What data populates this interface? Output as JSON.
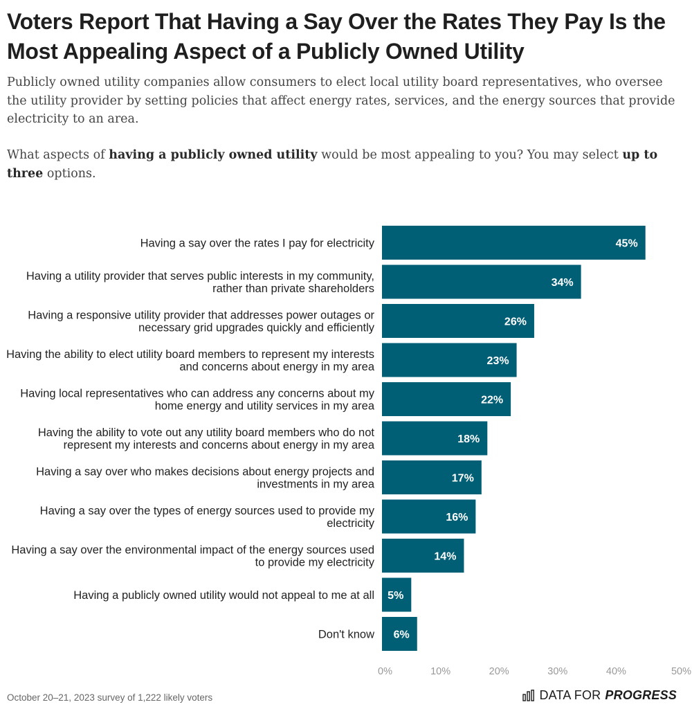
{
  "title": "Voters Report That Having a Say Over the Rates They Pay Is the Most Appealing Aspect of a Publicly Owned Utility",
  "intro": "Publicly owned utility companies allow consumers to elect local utility board representatives, who oversee the utility provider by setting policies that affect energy rates, services, and the energy sources that provide electricity to an area.",
  "question": {
    "part1": "What aspects of ",
    "bold1": "having a publicly owned utility",
    "part2": " would be most appealing to you? You may select ",
    "bold2": "up to three",
    "part3": " options."
  },
  "footnote": "October 20–21, 2023 survey of 1,222 likely voters",
  "brand": {
    "light": "DATA FOR",
    "strong": "PROGRESS",
    "icon": "bar-chart-icon"
  },
  "colors": {
    "bar": "#005E75",
    "value_text": "#FFFFFF"
  },
  "chart_data": {
    "type": "bar",
    "orientation": "horizontal",
    "categories": [
      "Having a say over the rates I pay for electricity",
      "Having a utility provider that serves public interests in my community, rather than private shareholders",
      "Having a responsive utility provider that addresses power outages or necessary grid upgrades quickly and efficiently",
      "Having the ability to elect utility board members to represent my interests and concerns about energy in my area",
      "Having local representatives who can address any concerns about my home energy and utility services in my area",
      "Having the ability to vote out any utility board members who do not represent my interests and concerns about energy in my area",
      "Having a say over who makes decisions about energy projects and investments in my area",
      "Having a say over the types of energy sources used to provide my electricity",
      "Having a say over the environmental impact of the energy sources used to provide my electricity",
      "Having a publicly owned utility would not appeal to me at all",
      "Don't know"
    ],
    "values": [
      45,
      34,
      26,
      23,
      22,
      18,
      17,
      16,
      14,
      5,
      6
    ],
    "value_labels": [
      "45%",
      "34%",
      "26%",
      "23%",
      "22%",
      "18%",
      "17%",
      "16%",
      "14%",
      "5%",
      "6%"
    ],
    "xlim": [
      0,
      50
    ],
    "xticks": [
      0,
      10,
      20,
      30,
      40,
      50
    ],
    "xtick_labels": [
      "0%",
      "10%",
      "20%",
      "30%",
      "40%",
      "50%"
    ],
    "grid": false,
    "legend": "none"
  }
}
